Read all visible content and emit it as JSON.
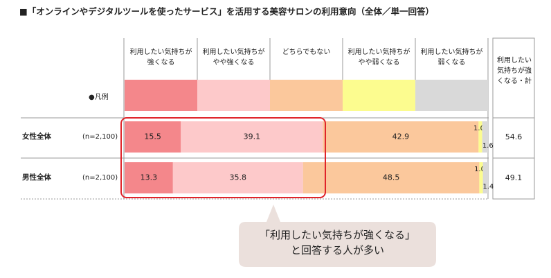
{
  "chart_data": {
    "type": "stacked-bar-horizontal",
    "title": "■「オンラインやデジタルツールを使ったサービス」を活用する美容サロンの利用意向（全体／単一回答）",
    "legend_label": "●凡例",
    "categories": [
      "女性全体",
      "男性全体"
    ],
    "sample_sizes": [
      "(n=2,100)",
      "(n=2,100)"
    ],
    "series": [
      {
        "name": "利用したい気持ちが強くなる",
        "color": "#f4878b",
        "values": [
          15.5,
          13.3
        ],
        "value_labels": [
          "15.5",
          "13.3"
        ]
      },
      {
        "name": "利用したい気持ちがやや強くなる",
        "color": "#fdc9ca",
        "values": [
          39.1,
          35.8
        ],
        "value_labels": [
          "39.1",
          "35.8"
        ]
      },
      {
        "name": "どちらでもない",
        "color": "#fbc89c",
        "values": [
          42.9,
          48.5
        ],
        "value_labels": [
          "42.9",
          "48.5"
        ]
      },
      {
        "name": "利用したい気持ちがやや弱くなる",
        "color": "#fcfc8f",
        "values": [
          1.0,
          1.0
        ],
        "value_labels": [
          "1.0",
          "1.0"
        ]
      },
      {
        "name": "利用したい気持ちが弱くなる",
        "color": "#d9d9d9",
        "values": [
          1.6,
          1.4
        ],
        "value_labels": [
          "1.6",
          "1.4"
        ]
      }
    ],
    "totals": {
      "label": "利用したい気持ちが強くなる・計",
      "values": [
        54.6,
        49.1
      ]
    },
    "annotation": [
      "「利用したい気持ちが強くなる」",
      "と回答する人が多い"
    ]
  }
}
